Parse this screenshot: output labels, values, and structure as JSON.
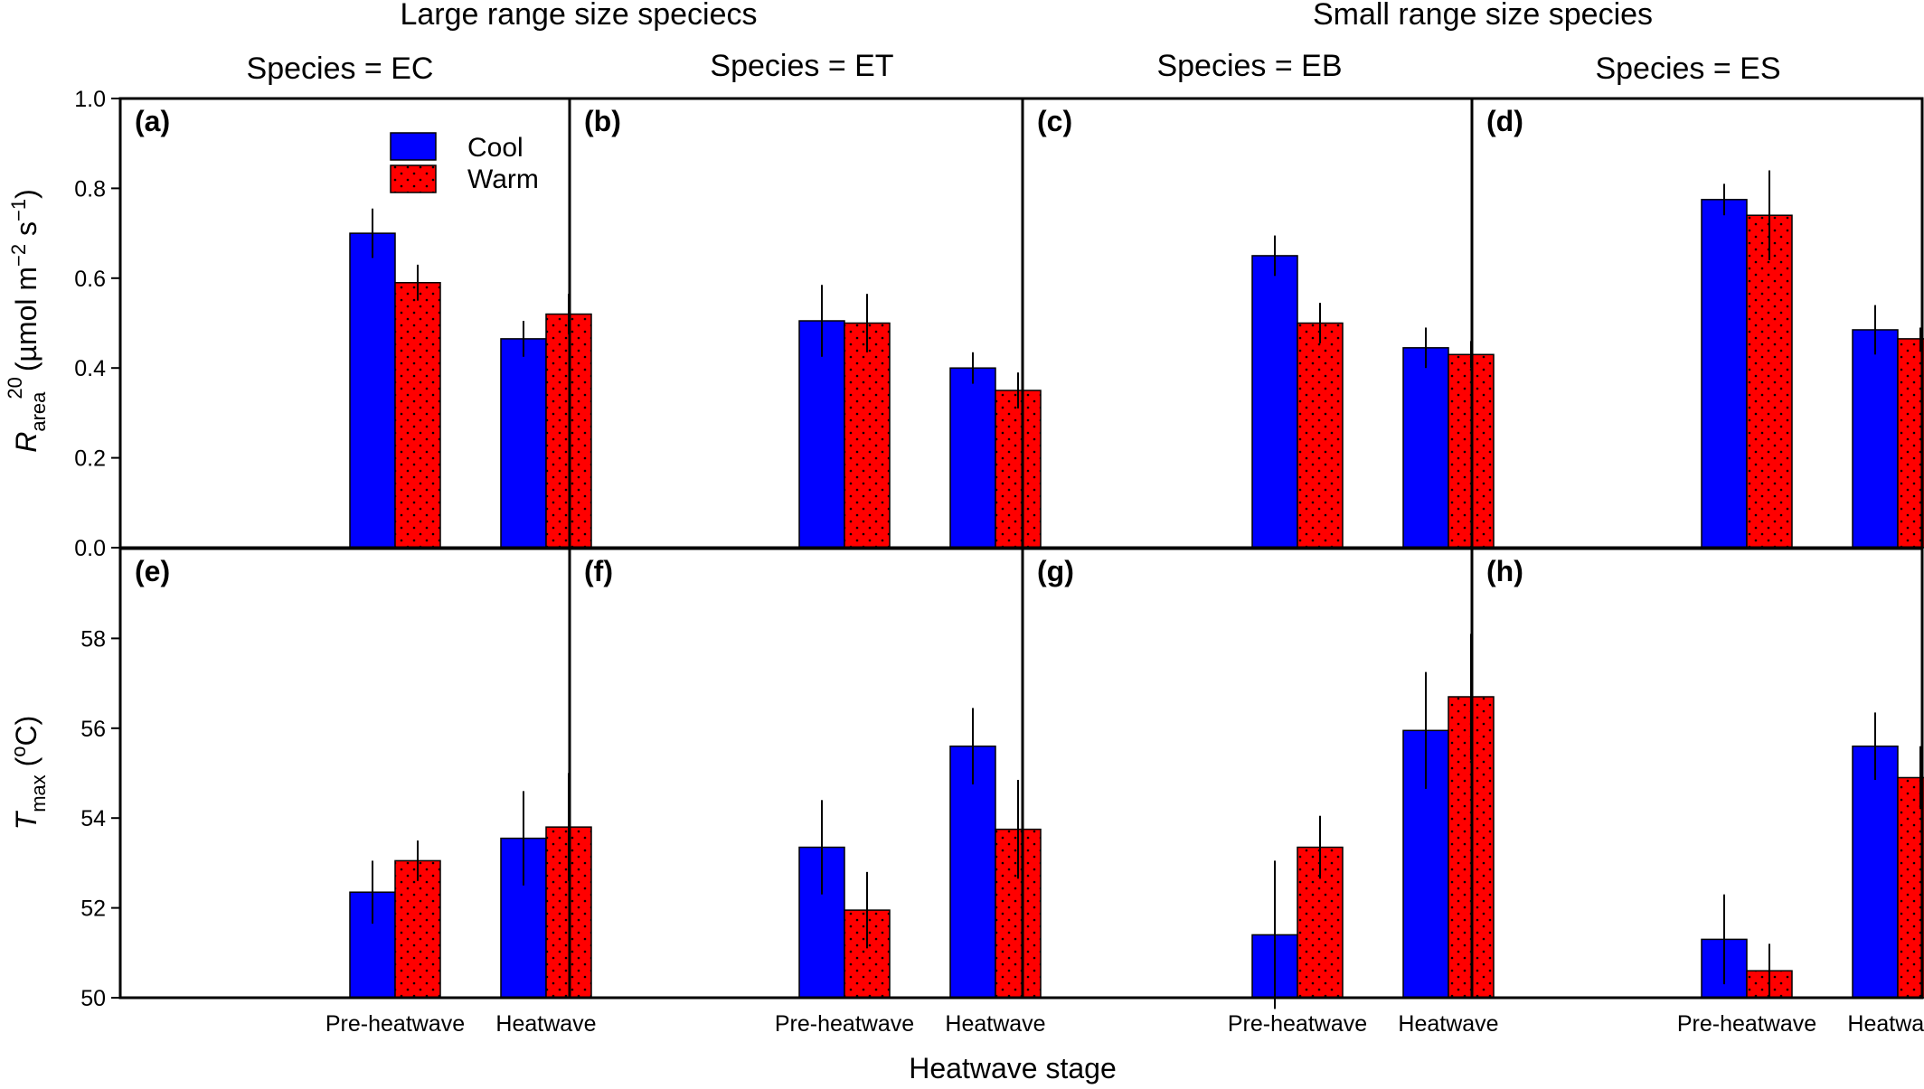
{
  "headers": {
    "left_group": "Large range size speciecs",
    "right_group": "Small range size species"
  },
  "columns": [
    {
      "species_label": "Species = EC"
    },
    {
      "species_label": "Species = ET"
    },
    {
      "species_label": "Species = EB"
    },
    {
      "species_label": "Species = ES"
    }
  ],
  "legend": [
    {
      "name": "Cool",
      "color": "#0000ff",
      "pattern": "solid"
    },
    {
      "name": "Warm",
      "color": "#ff0000",
      "pattern": "dotted"
    }
  ],
  "axes": {
    "top_ylabel_main": "R",
    "top_ylabel_sub": "area",
    "top_ylabel_sup": "20",
    "top_ylabel_rest": "(µmol m",
    "top_ylabel_exp1": "−2",
    "top_ylabel_mid": " s",
    "top_ylabel_exp2": "−1",
    "top_ylabel_close": ")",
    "bottom_ylabel_main": "T",
    "bottom_ylabel_sub": "max",
    "bottom_ylabel_rest": " (",
    "bottom_ylabel_sup": "o",
    "bottom_ylabel_close": "C)",
    "xlabel": "Heatwave stage",
    "top_yticks": [
      "0.0",
      "0.2",
      "0.4",
      "0.6",
      "0.8",
      "1.0"
    ],
    "bottom_yticks": [
      "50",
      "52",
      "54",
      "56",
      "58"
    ]
  },
  "chart_data": [
    {
      "panel": "(a)",
      "type": "bar",
      "categories": [
        "Pre-heatwave",
        "Heatwave"
      ],
      "ylim": [
        0,
        1.0
      ],
      "series": [
        {
          "name": "Cool",
          "values": [
            0.7,
            0.465
          ],
          "errors": [
            0.055,
            0.04
          ]
        },
        {
          "name": "Warm",
          "values": [
            0.59,
            0.52
          ],
          "errors": [
            0.04,
            0.045
          ]
        }
      ]
    },
    {
      "panel": "(b)",
      "type": "bar",
      "categories": [
        "Pre-heatwave",
        "Heatwave"
      ],
      "ylim": [
        0,
        1.0
      ],
      "series": [
        {
          "name": "Cool",
          "values": [
            0.505,
            0.4
          ],
          "errors": [
            0.08,
            0.035
          ]
        },
        {
          "name": "Warm",
          "values": [
            0.5,
            0.35
          ],
          "errors": [
            0.065,
            0.04
          ]
        }
      ]
    },
    {
      "panel": "(c)",
      "type": "bar",
      "categories": [
        "Pre-heatwave",
        "Heatwave"
      ],
      "ylim": [
        0,
        1.0
      ],
      "series": [
        {
          "name": "Cool",
          "values": [
            0.65,
            0.445
          ],
          "errors": [
            0.045,
            0.045
          ]
        },
        {
          "name": "Warm",
          "values": [
            0.5,
            0.43
          ],
          "errors": [
            0.045,
            0.03
          ]
        }
      ]
    },
    {
      "panel": "(d)",
      "type": "bar",
      "categories": [
        "Pre-heatwave",
        "Heatwave"
      ],
      "ylim": [
        0,
        1.0
      ],
      "series": [
        {
          "name": "Cool",
          "values": [
            0.775,
            0.485
          ],
          "errors": [
            0.035,
            0.055
          ]
        },
        {
          "name": "Warm",
          "values": [
            0.74,
            0.465
          ],
          "errors": [
            0.1,
            0.025
          ]
        }
      ]
    },
    {
      "panel": "(e)",
      "type": "bar",
      "categories": [
        "Pre-heatwave",
        "Heatwave"
      ],
      "ylim": [
        50,
        60
      ],
      "series": [
        {
          "name": "Cool",
          "values": [
            52.35,
            53.55
          ],
          "errors": [
            0.7,
            1.05
          ]
        },
        {
          "name": "Warm",
          "values": [
            53.05,
            53.8
          ],
          "errors": [
            0.45,
            1.2
          ]
        }
      ]
    },
    {
      "panel": "(f)",
      "type": "bar",
      "categories": [
        "Pre-heatwave",
        "Heatwave"
      ],
      "ylim": [
        50,
        60
      ],
      "series": [
        {
          "name": "Cool",
          "values": [
            53.35,
            55.6
          ],
          "errors": [
            1.05,
            0.85
          ]
        },
        {
          "name": "Warm",
          "values": [
            51.95,
            53.75
          ],
          "errors": [
            0.85,
            1.1
          ]
        }
      ]
    },
    {
      "panel": "(g)",
      "type": "bar",
      "categories": [
        "Pre-heatwave",
        "Heatwave"
      ],
      "ylim": [
        50,
        60
      ],
      "series": [
        {
          "name": "Cool",
          "values": [
            51.4,
            55.95
          ],
          "errors": [
            1.65,
            1.3
          ]
        },
        {
          "name": "Warm",
          "values": [
            53.35,
            56.7
          ],
          "errors": [
            0.7,
            1.4
          ]
        }
      ]
    },
    {
      "panel": "(h)",
      "type": "bar",
      "categories": [
        "Pre-heatwave",
        "Heatwave"
      ],
      "ylim": [
        50,
        60
      ],
      "series": [
        {
          "name": "Cool",
          "values": [
            51.3,
            55.6
          ],
          "errors": [
            1.0,
            0.75
          ]
        },
        {
          "name": "Warm",
          "values": [
            50.6,
            54.9
          ],
          "errors": [
            0.6,
            0.7
          ]
        }
      ]
    }
  ]
}
